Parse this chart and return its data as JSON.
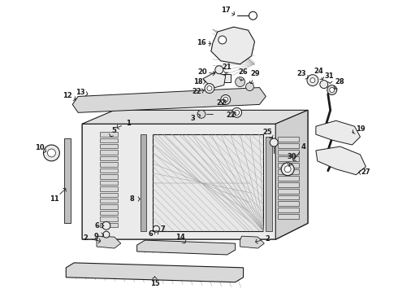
{
  "bg_color": "#ffffff",
  "line_color": "#1a1a1a",
  "figsize": [
    4.9,
    3.6
  ],
  "dpi": 100,
  "gray_fill": "#d8d8d8",
  "light_gray": "#ebebeb",
  "dark_gray": "#aaaaaa"
}
